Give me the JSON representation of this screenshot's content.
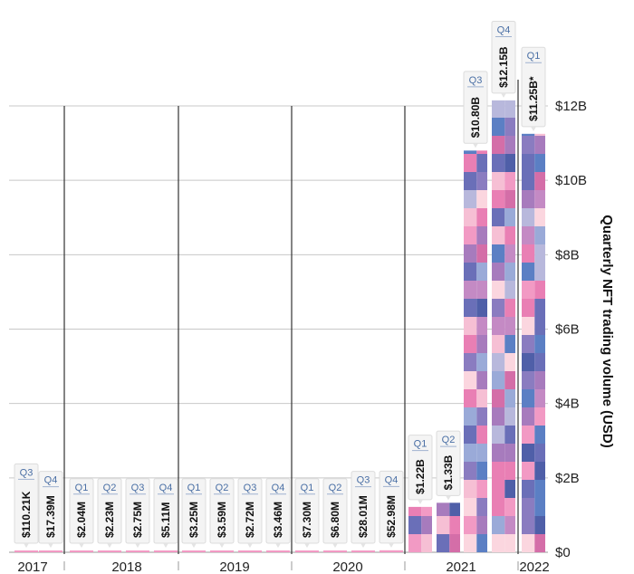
{
  "chart_data": {
    "type": "bar",
    "title": "",
    "xlabel": "",
    "ylabel": "Quarterly NFT trading volume (USD)",
    "ylim": [
      0,
      12
    ],
    "y_unit": "billions USD",
    "y_ticks": [
      "$0",
      "$2B",
      "$4B",
      "$6B",
      "$8B",
      "$10B",
      "$12B"
    ],
    "y_tick_values": [
      0,
      2,
      4,
      6,
      8,
      10,
      12
    ],
    "grid": true,
    "years": [
      "2017",
      "2018",
      "2019",
      "2020",
      "2021",
      "2022"
    ],
    "bars": [
      {
        "year": "2017",
        "quarter": "Q3",
        "label": "$110.21K",
        "value": 0.00011021
      },
      {
        "year": "2017",
        "quarter": "Q4",
        "label": "$17.39M",
        "value": 0.01739
      },
      {
        "year": "2018",
        "quarter": "Q1",
        "label": "$2.04M",
        "value": 0.00204
      },
      {
        "year": "2018",
        "quarter": "Q2",
        "label": "$2.23M",
        "value": 0.00223
      },
      {
        "year": "2018",
        "quarter": "Q3",
        "label": "$2.75M",
        "value": 0.00275
      },
      {
        "year": "2018",
        "quarter": "Q4",
        "label": "$5.11M",
        "value": 0.00511
      },
      {
        "year": "2019",
        "quarter": "Q1",
        "label": "$3.25M",
        "value": 0.00325
      },
      {
        "year": "2019",
        "quarter": "Q2",
        "label": "$3.59M",
        "value": 0.00359
      },
      {
        "year": "2019",
        "quarter": "Q3",
        "label": "$2.72M",
        "value": 0.00272
      },
      {
        "year": "2019",
        "quarter": "Q4",
        "label": "$3.46M",
        "value": 0.00346
      },
      {
        "year": "2020",
        "quarter": "Q1",
        "label": "$7.30M",
        "value": 0.0073
      },
      {
        "year": "2020",
        "quarter": "Q2",
        "label": "$6.80M",
        "value": 0.0068
      },
      {
        "year": "2020",
        "quarter": "Q3",
        "label": "$28.01M",
        "value": 0.02801
      },
      {
        "year": "2020",
        "quarter": "Q4",
        "label": "$52.98M",
        "value": 0.05298
      },
      {
        "year": "2021",
        "quarter": "Q1",
        "label": "$1.22B",
        "value": 1.22
      },
      {
        "year": "2021",
        "quarter": "Q2",
        "label": "$1.33B",
        "value": 1.33
      },
      {
        "year": "2021",
        "quarter": "Q3",
        "label": "$10.80B",
        "value": 10.8
      },
      {
        "year": "2021",
        "quarter": "Q4",
        "label": "$12.15B",
        "value": 12.15
      },
      {
        "year": "2022",
        "quarter": "Q1",
        "label": "$11.25B*",
        "value": 11.25
      }
    ],
    "colors": {
      "grid": "#c8c8c8",
      "separator": "#333333",
      "quarter_text": "#4a6fa5",
      "mosaic": [
        "#5b7fc4",
        "#6a6fb8",
        "#8a7cc0",
        "#a77bbd",
        "#c48ac4",
        "#e97fb4",
        "#f29ac4",
        "#f6bfd4",
        "#fbd6df",
        "#b8b8dc",
        "#4f5fa8",
        "#d46ea8",
        "#9aaad8"
      ]
    }
  }
}
